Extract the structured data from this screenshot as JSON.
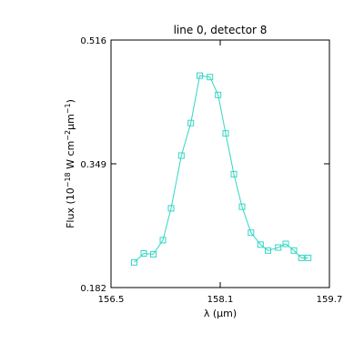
{
  "chart_data": {
    "type": "line",
    "title": "line 0, detector 8",
    "xlabel": "λ (μm)",
    "ylabel_main": "Flux (10",
    "ylabel_exp1": "−18",
    "ylabel_mid": " W cm",
    "ylabel_exp2": "−2",
    "ylabel_unit": "μm",
    "ylabel_exp3": "−1",
    "ylabel_close": ")",
    "xlim": [
      156.5,
      159.7
    ],
    "ylim": [
      0.182,
      0.516
    ],
    "xticks": [
      "156.5",
      "158.1",
      "159.7"
    ],
    "yticks": [
      "0.182",
      "0.349",
      "0.516"
    ],
    "grid": false,
    "marker": "open-square",
    "color": "#33d6c4",
    "series": [
      {
        "x": [
          156.84,
          156.98,
          157.12,
          157.26,
          157.38,
          157.53,
          157.67,
          157.8,
          157.95,
          158.07,
          158.18,
          158.3,
          158.42,
          158.55,
          158.69,
          158.8,
          158.95,
          159.06,
          159.18,
          159.29,
          159.39
        ],
        "y": [
          0.216,
          0.228,
          0.227,
          0.246,
          0.289,
          0.36,
          0.404,
          0.468,
          0.466,
          0.442,
          0.39,
          0.335,
          0.291,
          0.256,
          0.24,
          0.232,
          0.236,
          0.241,
          0.232,
          0.222,
          0.222
        ]
      }
    ]
  }
}
